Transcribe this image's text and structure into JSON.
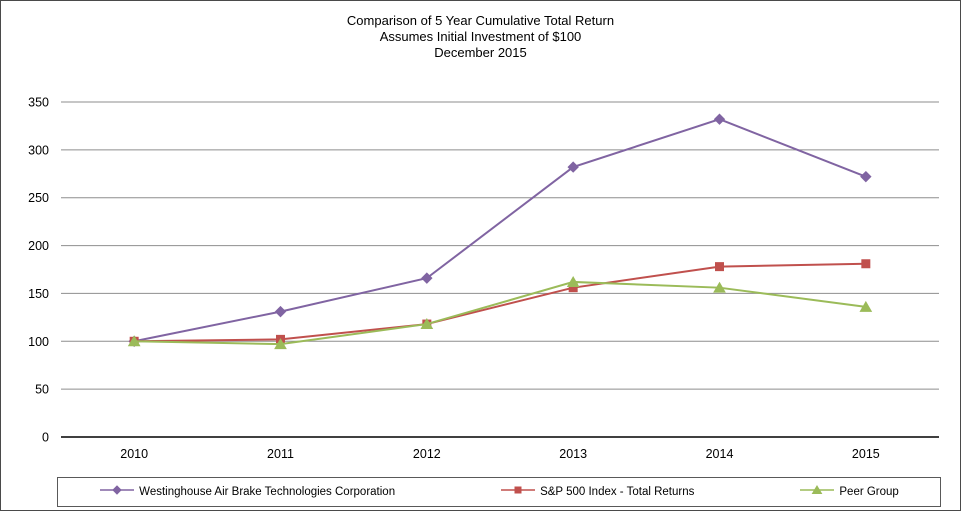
{
  "chart_data": {
    "type": "line",
    "title": "Comparison of 5 Year Cumulative Total Return",
    "subtitle": "Assumes Initial Investment of $100",
    "date_line": "December 2015",
    "categories": [
      "2010",
      "2011",
      "2012",
      "2013",
      "2014",
      "2015"
    ],
    "series": [
      {
        "name": "Westinghouse Air Brake Technologies Corporation",
        "color": "#8064A2",
        "marker": "diamond",
        "values": [
          100,
          131,
          166,
          282,
          332,
          272
        ]
      },
      {
        "name": "S&P 500 Index - Total Returns",
        "color": "#C0504D",
        "marker": "square",
        "values": [
          100,
          102,
          118,
          156,
          178,
          181
        ]
      },
      {
        "name": "Peer Group",
        "color": "#9BBB59",
        "marker": "triangle",
        "values": [
          100,
          97,
          118,
          162,
          156,
          136
        ]
      }
    ],
    "xlabel": "",
    "ylabel": "",
    "ylim": [
      0,
      350
    ],
    "ytick_step": 50,
    "grid": true,
    "legend_position": "bottom",
    "axis_color": "#000000",
    "gridline_color": "#8e8e8e"
  }
}
